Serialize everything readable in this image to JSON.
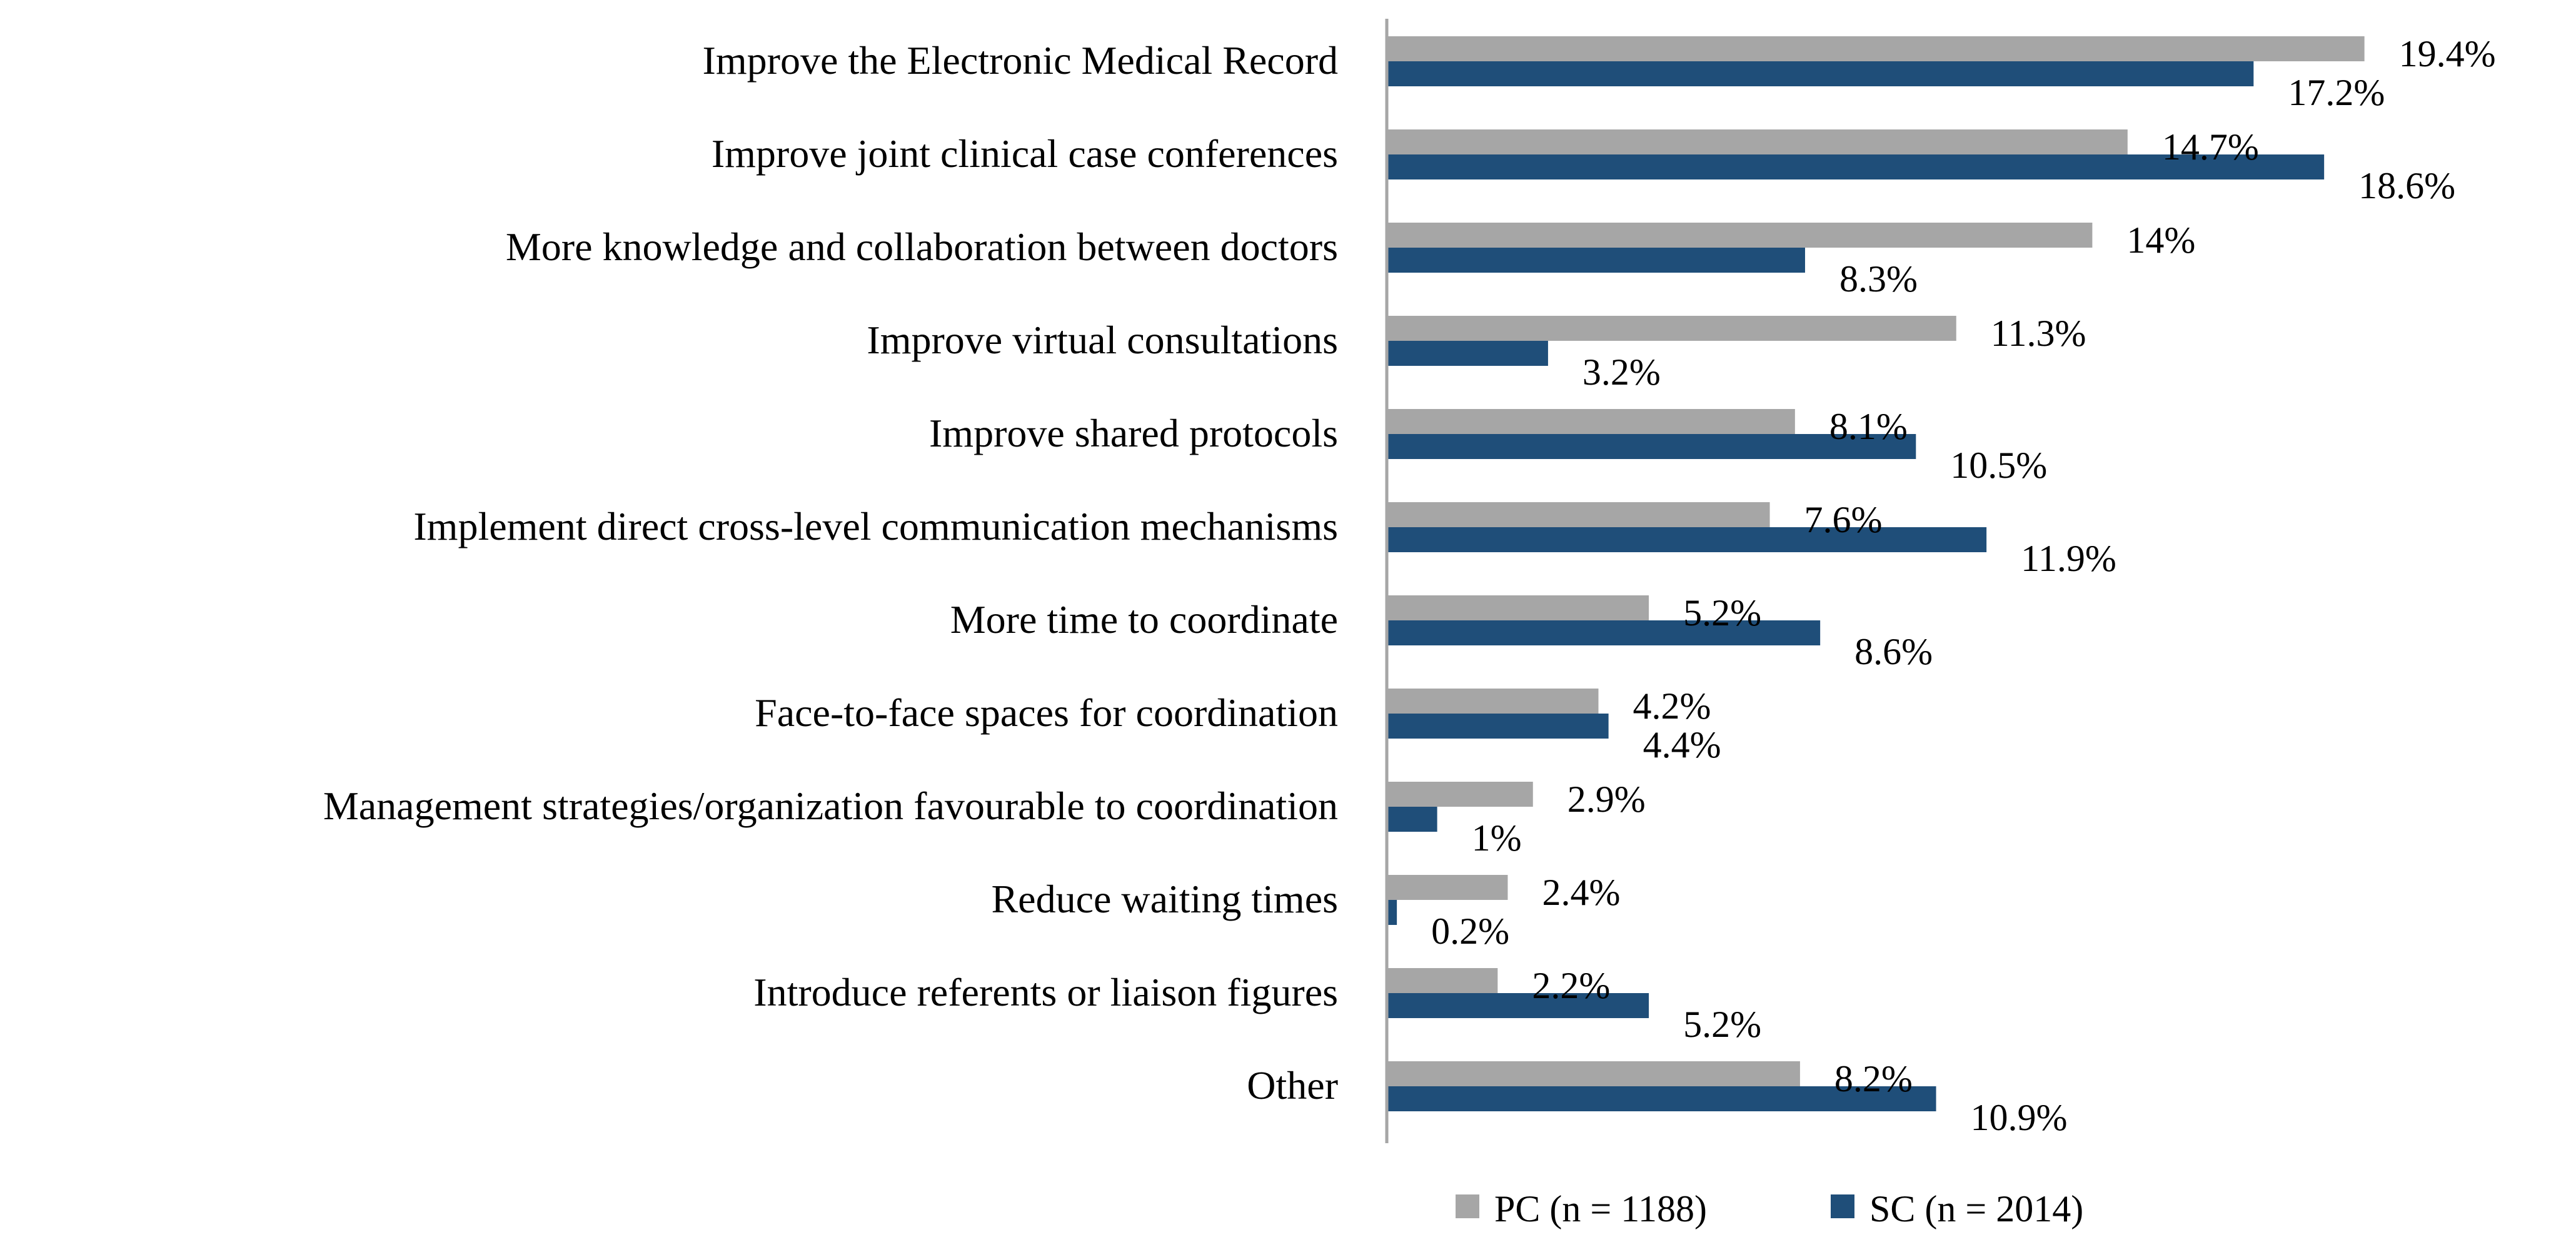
{
  "chart_data": {
    "type": "bar",
    "orientation": "horizontal",
    "title": "",
    "xlabel": "",
    "ylabel": "",
    "xlim": [
      0,
      20
    ],
    "grid": false,
    "legend_position": "bottom",
    "categories": [
      "Improve the Electronic Medical Record",
      "Improve joint clinical case conferences",
      "More knowledge and collaboration between doctors",
      "Improve virtual consultations",
      "Improve shared protocols",
      "Implement direct cross-level communication mechanisms",
      "More time to coordinate",
      "Face-to-face spaces for coordination",
      "Management strategies/organization favourable to coordination",
      "Reduce waiting times",
      "Introduce referents or liaison figures",
      "Other"
    ],
    "series": [
      {
        "name": "PC (n = 1188)",
        "color": "#a6a6a6",
        "values": [
          19.4,
          14.7,
          14,
          11.3,
          8.1,
          7.6,
          5.2,
          4.2,
          2.9,
          2.4,
          2.2,
          8.2
        ],
        "labels": [
          "19.4%",
          "14.7%",
          "14%",
          "11.3%",
          "8.1%",
          "7.6%",
          "5.2%",
          "4.2%",
          "2.9%",
          "2.4%",
          "2.2%",
          "8.2%"
        ]
      },
      {
        "name": "SC (n = 2014)",
        "color": "#1f4e79",
        "values": [
          17.2,
          18.6,
          8.3,
          3.2,
          10.5,
          11.9,
          8.6,
          4.4,
          1,
          0.2,
          5.2,
          10.9
        ],
        "labels": [
          "17.2%",
          "18.6%",
          "8.3%",
          "3.2%",
          "10.5%",
          "11.9%",
          "8.6%",
          "4.4%",
          "1%",
          "0.2%",
          "5.2%",
          "10.9%"
        ]
      }
    ]
  }
}
